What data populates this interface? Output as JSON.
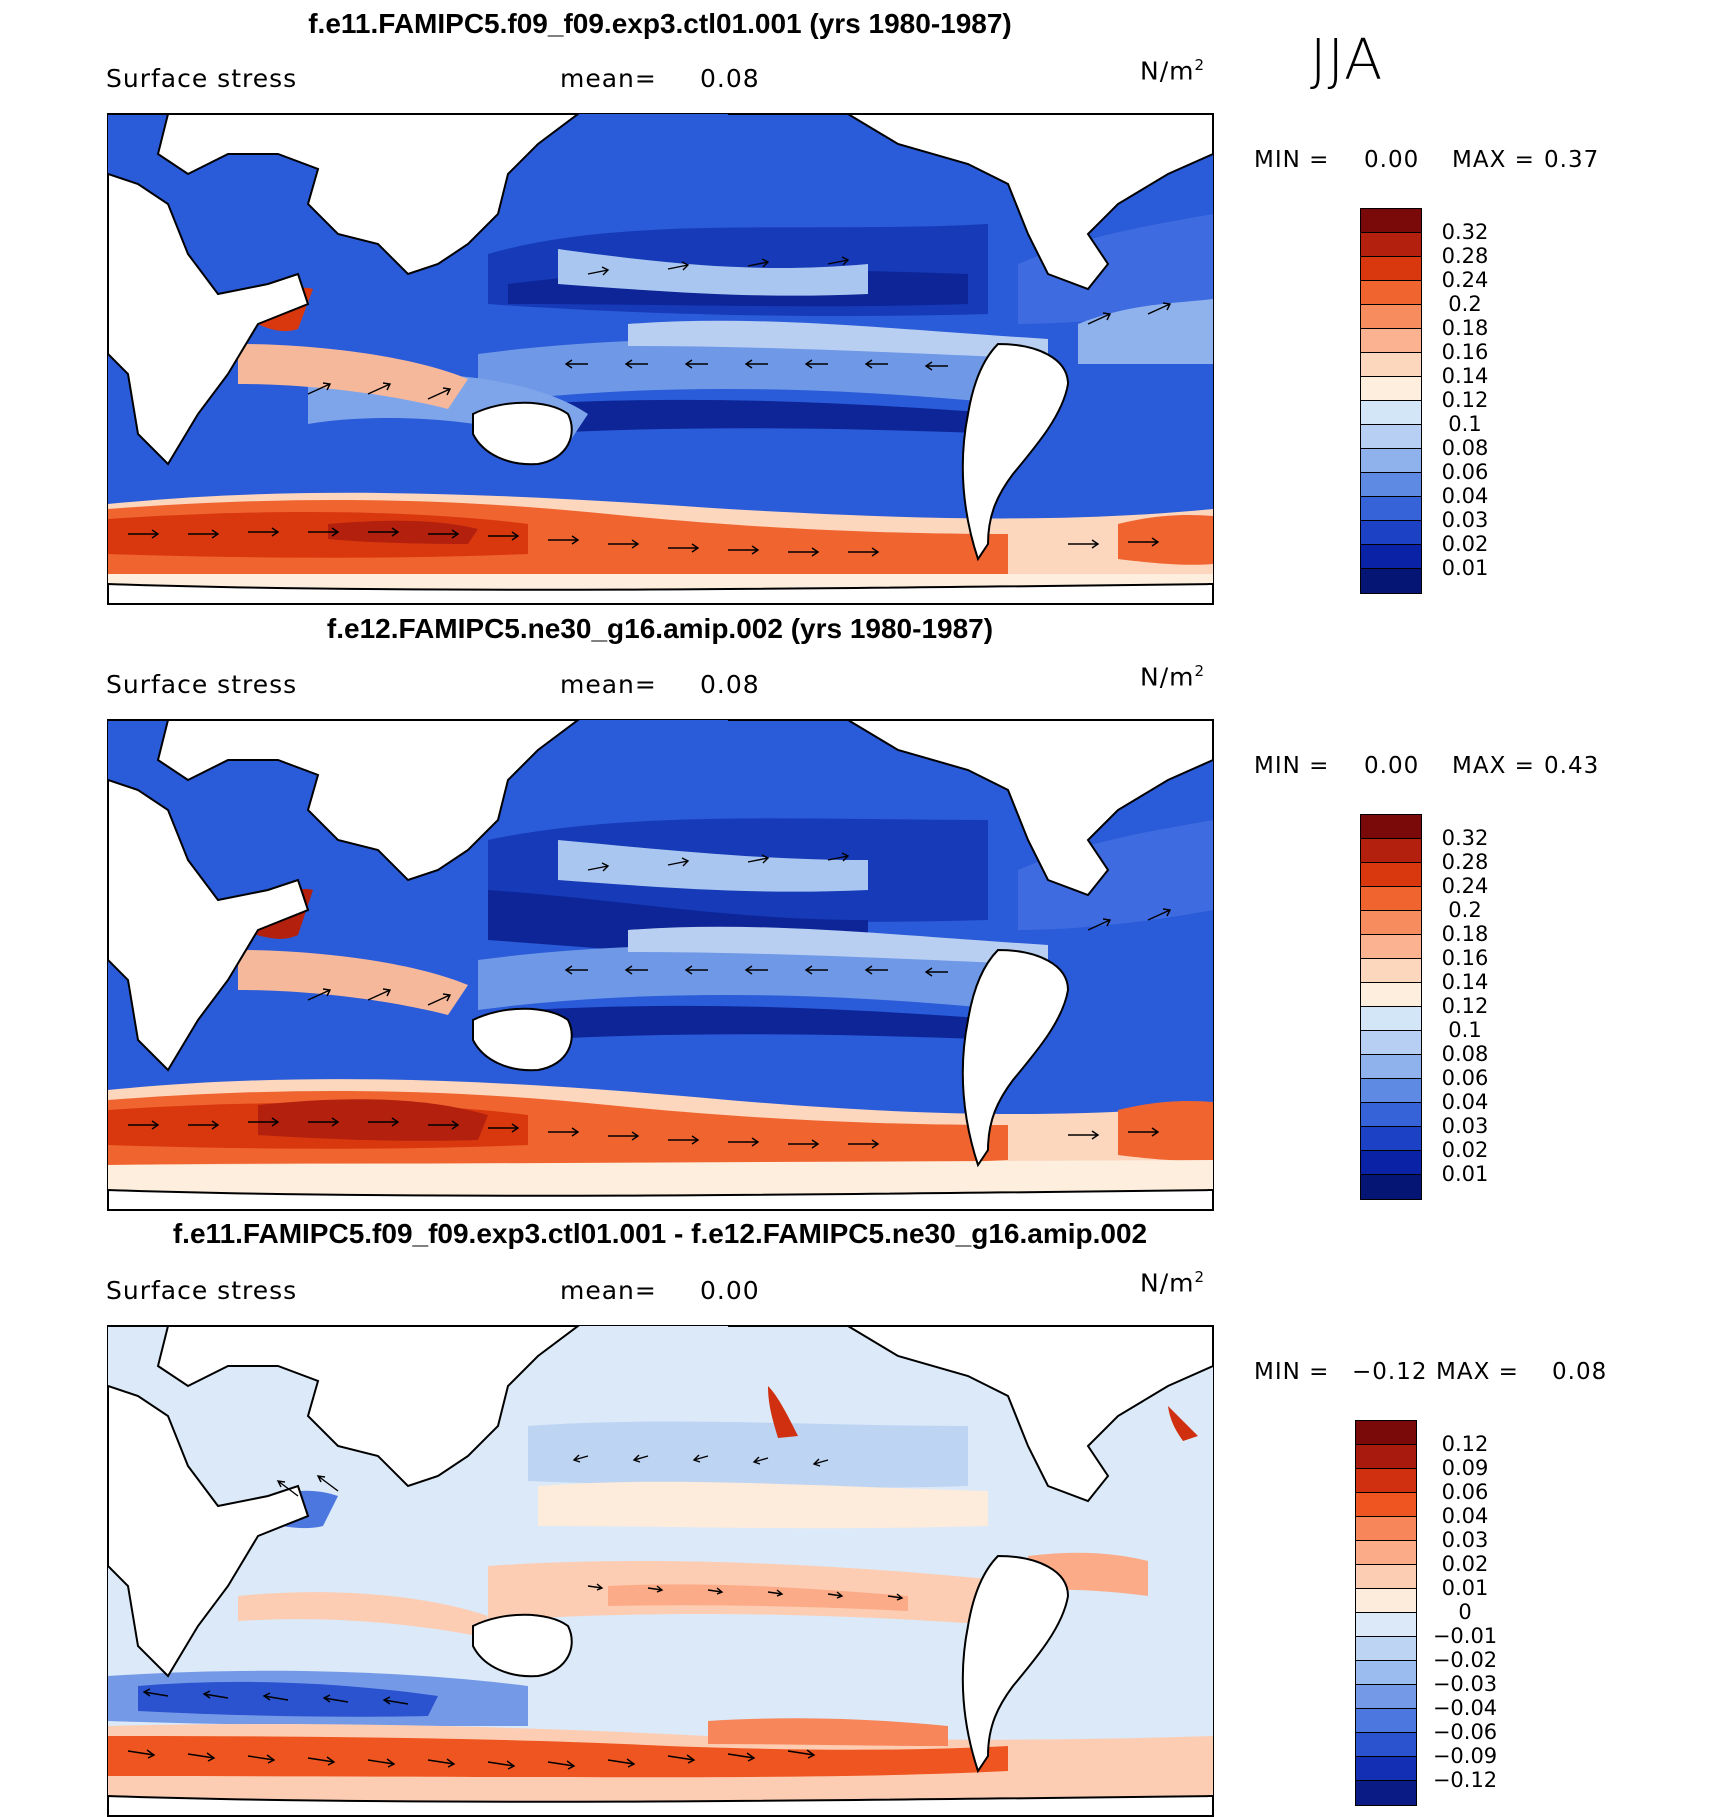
{
  "season": "JJA",
  "panels": [
    {
      "title": "f.e11.FAMIPC5.f09_f09.exp3.ctl01.001 (yrs 1980-1987)",
      "variable": "Surface stress",
      "mean_label": "mean=",
      "mean_value": "0.08",
      "units": "N/m",
      "units_exp": "2",
      "min_label": "MIN =",
      "min_value": "0.00",
      "max_label": "MAX =",
      "max_value": "0.37",
      "colorbar_ticks": [
        "0.32",
        "0.28",
        "0.24",
        "0.2",
        "0.18",
        "0.16",
        "0.14",
        "0.12",
        "0.1",
        "0.08",
        "0.06",
        "0.04",
        "0.03",
        "0.02",
        "0.01"
      ]
    },
    {
      "title": "f.e12.FAMIPC5.ne30_g16.amip.002 (yrs 1980-1987)",
      "variable": "Surface stress",
      "mean_label": "mean=",
      "mean_value": "0.08",
      "units": "N/m",
      "units_exp": "2",
      "min_label": "MIN =",
      "min_value": "0.00",
      "max_label": "MAX =",
      "max_value": "0.43",
      "colorbar_ticks": [
        "0.32",
        "0.28",
        "0.24",
        "0.2",
        "0.18",
        "0.16",
        "0.14",
        "0.12",
        "0.1",
        "0.08",
        "0.06",
        "0.04",
        "0.03",
        "0.02",
        "0.01"
      ]
    },
    {
      "title": "f.e11.FAMIPC5.f09_f09.exp3.ctl01.001 - f.e12.FAMIPC5.ne30_g16.amip.002",
      "variable": "Surface stress",
      "mean_label": "mean=",
      "mean_value": "0.00",
      "units": "N/m",
      "units_exp": "2",
      "min_label": "MIN =",
      "min_value": "−0.12",
      "max_label": "MAX =",
      "max_value": "0.08",
      "colorbar_ticks": [
        "0.12",
        "0.09",
        "0.06",
        "0.04",
        "0.03",
        "0.02",
        "0.01",
        "0",
        "−0.01",
        "−0.02",
        "−0.03",
        "−0.04",
        "−0.06",
        "−0.09",
        "−0.12"
      ]
    }
  ],
  "colors": {
    "mean_colorbar": [
      "#7a0a0a",
      "#b3200e",
      "#d9380f",
      "#f0642f",
      "#f78d5e",
      "#fbb291",
      "#fcd6bd",
      "#fdeedd",
      "#d3e6f7",
      "#b6cff2",
      "#8fb2ec",
      "#5f8ae3",
      "#3763d8",
      "#1c41c4",
      "#0a22a6",
      "#041574"
    ],
    "diff_colorbar": [
      "#7a0a0a",
      "#a8190e",
      "#d0300f",
      "#ee5520",
      "#f7875a",
      "#fbab88",
      "#fdcdb3",
      "#fdebdc",
      "#dbe9f8",
      "#bdd4f3",
      "#9bbcee",
      "#7499e7",
      "#4c77de",
      "#2b52cf",
      "#132fb4",
      "#0a1b86"
    ],
    "land": "#ffffff",
    "ocean_base_mean": "#2350d4",
    "ocean_base_diff": "#dbe9f8"
  }
}
